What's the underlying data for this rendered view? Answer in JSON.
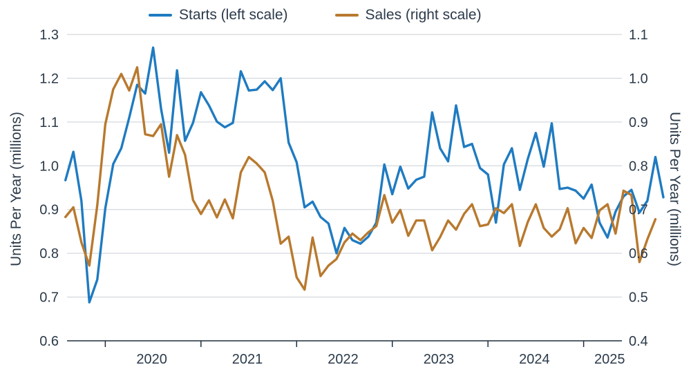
{
  "chart_data": {
    "type": "line",
    "colors": {
      "starts": "#1f7bc1",
      "sales": "#b8792e",
      "grid": "#c9cfd6",
      "axis": "#1f2d3d",
      "text": "#2b3a4a"
    },
    "legend": {
      "placement": "top-center"
    },
    "grid": true,
    "x_ticks": [
      "2020",
      "2021",
      "2022",
      "2023",
      "2024",
      "2025"
    ],
    "x_range": [
      2019.6,
      2025.4
    ],
    "y_left": {
      "label": "Units Per Year (millions)",
      "range": [
        0.6,
        1.3
      ],
      "ticks": [
        "0.6",
        "0.7",
        "0.8",
        "0.9",
        "1.0",
        "1.1",
        "1.2",
        "1.3"
      ]
    },
    "y_right": {
      "label": "Units Per Year (millions)",
      "range": [
        0.4,
        1.1
      ],
      "ticks": [
        "0.4",
        "0.5",
        "0.6",
        "0.7",
        "0.8",
        "0.9",
        "1.0",
        "1.1"
      ]
    },
    "series": [
      {
        "name": "Starts (left scale)",
        "axis": "left",
        "start": "2019-08",
        "values": [
          0.967,
          1.032,
          0.92,
          0.688,
          0.74,
          0.903,
          1.004,
          1.04,
          1.11,
          1.185,
          1.165,
          1.27,
          1.13,
          1.03,
          1.218,
          1.057,
          1.098,
          1.168,
          1.138,
          1.101,
          1.088,
          1.098,
          1.216,
          1.172,
          1.174,
          1.193,
          1.173,
          1.2,
          1.053,
          1.008,
          0.905,
          0.918,
          0.883,
          0.868,
          0.8,
          0.858,
          0.83,
          0.822,
          0.838,
          0.87,
          1.003,
          0.935,
          0.998,
          0.948,
          0.968,
          0.975,
          1.122,
          1.04,
          1.01,
          1.138,
          1.043,
          1.05,
          0.995,
          0.98,
          0.87,
          1.003,
          1.04,
          0.945,
          1.016,
          1.075,
          0.998,
          1.097,
          0.947,
          0.95,
          0.943,
          0.925,
          0.957,
          0.87,
          0.836,
          0.895,
          0.93,
          0.945,
          0.893,
          0.92,
          1.02,
          0.928
        ]
      },
      {
        "name": "Sales (right scale)",
        "axis": "right",
        "start": "2019-08",
        "values": [
          0.683,
          0.705,
          0.625,
          0.572,
          0.71,
          0.895,
          0.975,
          1.01,
          0.972,
          1.025,
          0.872,
          0.868,
          0.895,
          0.775,
          0.87,
          0.825,
          0.722,
          0.69,
          0.721,
          0.682,
          0.723,
          0.68,
          0.785,
          0.82,
          0.805,
          0.785,
          0.72,
          0.622,
          0.638,
          0.545,
          0.517,
          0.636,
          0.548,
          0.572,
          0.587,
          0.625,
          0.645,
          0.63,
          0.648,
          0.662,
          0.733,
          0.67,
          0.699,
          0.64,
          0.675,
          0.675,
          0.607,
          0.637,
          0.675,
          0.654,
          0.69,
          0.712,
          0.662,
          0.666,
          0.703,
          0.692,
          0.712,
          0.617,
          0.672,
          0.712,
          0.658,
          0.638,
          0.655,
          0.703,
          0.623,
          0.658,
          0.635,
          0.698,
          0.712,
          0.645,
          0.743,
          0.733,
          0.58,
          0.632,
          0.678
        ]
      }
    ]
  }
}
